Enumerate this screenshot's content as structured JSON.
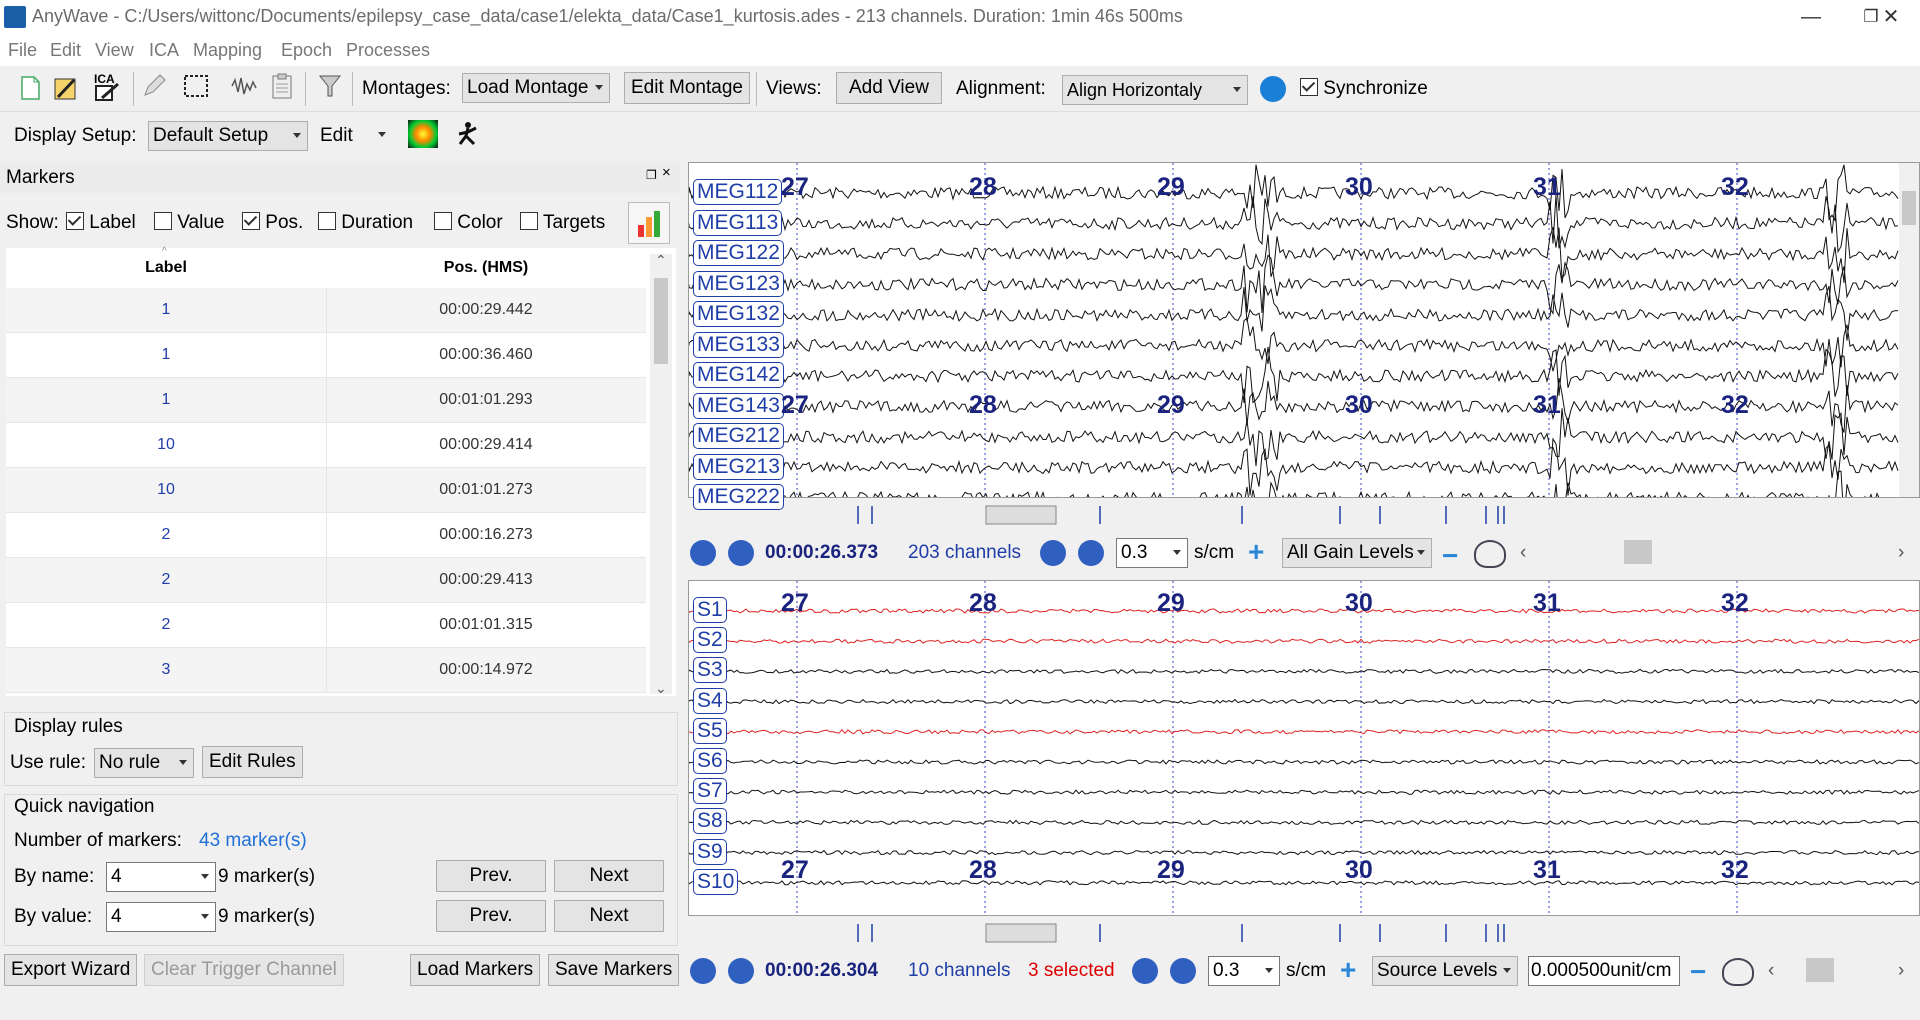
{
  "window": {
    "title": "AnyWave - C:/Users/wittonc/Documents/epilepsy_case_data/case1/elekta_data/Case1_kurtosis.ades - 213 channels. Duration: 1min 46s 500ms",
    "minimize": "—",
    "restore": "❐",
    "close": "✕"
  },
  "menu": [
    "File",
    "Edit",
    "View",
    "ICA",
    "Mapping",
    "Epoch",
    "Processes"
  ],
  "toolbar": {
    "montages_label": "Montages:",
    "load_montage": "Load Montage",
    "edit_montage": "Edit Montage",
    "views_label": "Views:",
    "add_view": "Add View",
    "alignment_label": "Alignment:",
    "alignment_value": "Align Horizontaly",
    "synchronize": "Synchronize",
    "display_setup_label": "Display Setup:",
    "display_setup_value": "Default Setup",
    "edit": "Edit",
    "ica_icon_text": "ICA"
  },
  "markers": {
    "panel_title": "Markers",
    "show_label": "Show:",
    "show_options": [
      {
        "label": "Label",
        "checked": true
      },
      {
        "label": "Value",
        "checked": false
      },
      {
        "label": "Pos.",
        "checked": true
      },
      {
        "label": "Duration",
        "checked": false
      },
      {
        "label": "Color",
        "checked": false
      },
      {
        "label": "Targets",
        "checked": false
      }
    ],
    "columns": [
      "Label",
      "Pos. (HMS)"
    ],
    "rows": [
      {
        "label": "1",
        "pos": "00:00:29.442"
      },
      {
        "label": "1",
        "pos": "00:00:36.460"
      },
      {
        "label": "1",
        "pos": "00:01:01.293"
      },
      {
        "label": "10",
        "pos": "00:00:29.414"
      },
      {
        "label": "10",
        "pos": "00:01:01.273"
      },
      {
        "label": "2",
        "pos": "00:00:16.273"
      },
      {
        "label": "2",
        "pos": "00:00:29.413"
      },
      {
        "label": "2",
        "pos": "00:01:01.315"
      },
      {
        "label": "3",
        "pos": "00:00:14.972"
      }
    ],
    "display_rules": {
      "title": "Display rules",
      "use_rule_label": "Use rule:",
      "use_rule_value": "No rule",
      "edit_rules": "Edit Rules"
    },
    "quick_nav": {
      "title": "Quick navigation",
      "count_label": "Number of markers:",
      "count_value": "43 marker(s)",
      "by_name_label": "By name:",
      "by_name_value": "4",
      "by_name_count": "9 marker(s)",
      "by_value_label": "By value:",
      "by_value_value": "4",
      "by_value_count": "9 marker(s)",
      "prev": "Prev.",
      "next": "Next"
    },
    "bottom": {
      "export_wizard": "Export Wizard",
      "clear_trigger": "Clear Trigger Channel",
      "load_markers": "Load Markers",
      "save_markers": "Save Markers"
    }
  },
  "view1": {
    "channels": [
      "MEG112",
      "MEG113",
      "MEG122",
      "MEG123",
      "MEG132",
      "MEG133",
      "MEG142",
      "MEG143",
      "MEG212",
      "MEG213",
      "MEG222"
    ],
    "time_ticks": [
      "27",
      "28",
      "29",
      "30",
      "31",
      "32"
    ],
    "time": "00:00:26.373",
    "channel_count": "203 channels",
    "scale": "0.3",
    "scale_unit": "s/cm",
    "gain": "All Gain Levels"
  },
  "view2": {
    "channels": [
      "S1",
      "S2",
      "S3",
      "S4",
      "S5",
      "S6",
      "S7",
      "S8",
      "S9",
      "S10"
    ],
    "red_channels": [
      "S1",
      "S2",
      "S5"
    ],
    "time_ticks": [
      "27",
      "28",
      "29",
      "30",
      "31",
      "32"
    ],
    "time": "00:00:26.304",
    "channel_count": "10 channels",
    "selected": "3 selected",
    "scale": "0.3",
    "scale_unit": "s/cm",
    "gain": "Source Levels",
    "amplitude": "0.000500unit/cm"
  }
}
